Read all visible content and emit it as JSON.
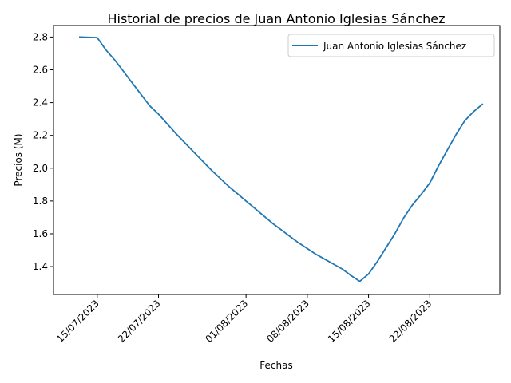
{
  "chart_data": {
    "type": "line",
    "title": "Historial de precios de Juan Antonio Iglesias Sánchez",
    "xlabel": "Fechas",
    "ylabel": "Precios (M)",
    "x_range": [
      "2023-07-10",
      "2023-08-30"
    ],
    "ylim": [
      1.23,
      2.87
    ],
    "y_ticks": [
      1.4,
      1.6,
      1.8,
      2.0,
      2.2,
      2.4,
      2.6,
      2.8
    ],
    "y_tick_labels": [
      "1.4",
      "1.6",
      "1.8",
      "2.0",
      "2.2",
      "2.4",
      "2.6",
      "2.8"
    ],
    "x_ticks": [
      "2023-07-15",
      "2023-07-22",
      "2023-08-01",
      "2023-08-08",
      "2023-08-15",
      "2023-08-22"
    ],
    "x_tick_labels": [
      "15/07/2023",
      "22/07/2023",
      "01/08/2023",
      "08/08/2023",
      "15/08/2023",
      "22/08/2023"
    ],
    "grid": false,
    "legend_position": "top-right",
    "series": [
      {
        "name": "Juan Antonio Iglesias Sánchez",
        "color": "#1f77b4",
        "x": [
          "2023-07-13",
          "2023-07-15",
          "2023-07-16",
          "2023-07-17",
          "2023-07-18",
          "2023-07-19",
          "2023-07-20",
          "2023-07-21",
          "2023-07-22",
          "2023-07-23",
          "2023-07-24",
          "2023-07-25",
          "2023-07-26",
          "2023-07-27",
          "2023-07-28",
          "2023-07-29",
          "2023-07-30",
          "2023-07-31",
          "2023-08-01",
          "2023-08-02",
          "2023-08-03",
          "2023-08-04",
          "2023-08-05",
          "2023-08-06",
          "2023-08-07",
          "2023-08-08",
          "2023-08-09",
          "2023-08-10",
          "2023-08-11",
          "2023-08-12",
          "2023-08-13",
          "2023-08-14",
          "2023-08-15",
          "2023-08-16",
          "2023-08-17",
          "2023-08-18",
          "2023-08-19",
          "2023-08-20",
          "2023-08-21",
          "2023-08-22",
          "2023-08-23",
          "2023-08-24",
          "2023-08-25",
          "2023-08-26",
          "2023-08-27",
          "2023-08-28"
        ],
        "y": [
          2.8,
          2.796,
          2.72,
          2.66,
          2.59,
          2.52,
          2.45,
          2.38,
          2.33,
          2.27,
          2.21,
          2.155,
          2.1,
          2.045,
          1.99,
          1.94,
          1.89,
          1.845,
          1.8,
          1.755,
          1.71,
          1.665,
          1.625,
          1.585,
          1.545,
          1.51,
          1.475,
          1.445,
          1.415,
          1.385,
          1.345,
          1.31,
          1.355,
          1.43,
          1.515,
          1.6,
          1.695,
          1.775,
          1.84,
          1.91,
          2.015,
          2.11,
          2.205,
          2.29,
          2.345,
          2.39
        ]
      }
    ]
  }
}
